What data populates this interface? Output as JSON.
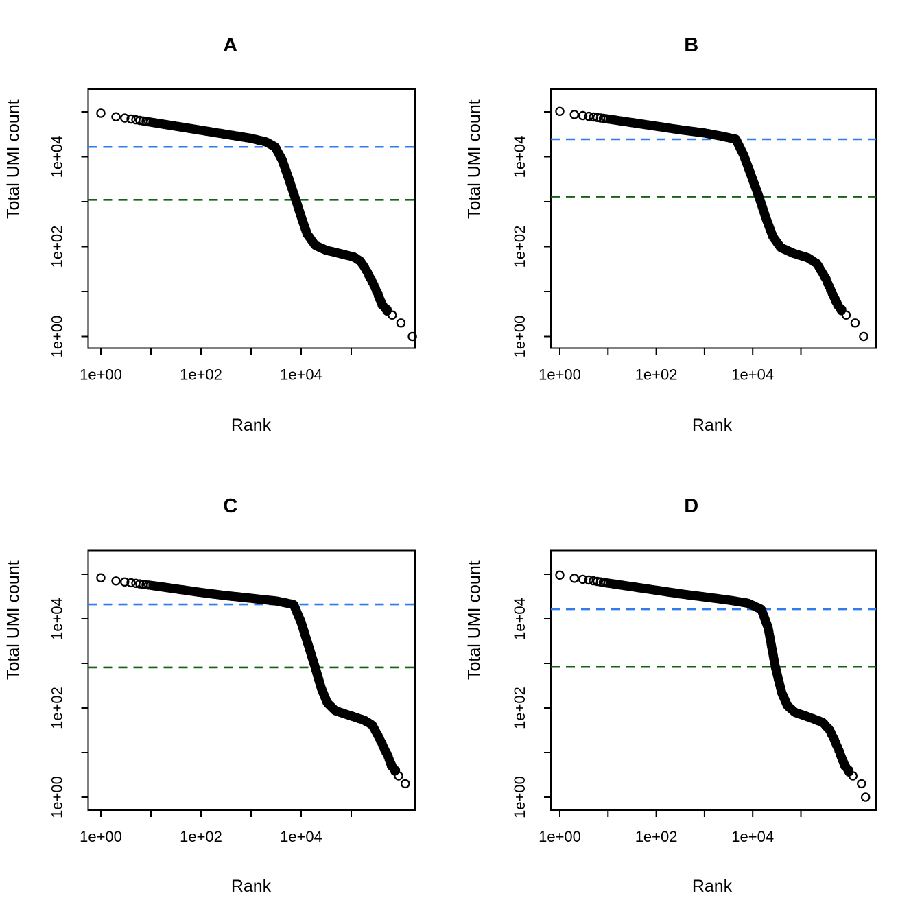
{
  "figure": {
    "background": "#ffffff",
    "description": "Four barcode-rank knee plots (log-log scatter of Total UMI count vs Rank) arranged in a 2x2 grid, each with a dashed blue knee line and dashed dark-green inflection line."
  },
  "colors": {
    "point_stroke": "#000000",
    "axis": "#000000",
    "knee_line_blue": "#2f7ded",
    "inflection_line_green": "#176117"
  },
  "chart_data": [
    {
      "type": "scatter",
      "title": "A",
      "xlabel": "Rank",
      "ylabel": "Total UMI count",
      "xscale": "log",
      "yscale": "log",
      "x_ticks": [
        {
          "log10": 0,
          "label": "1e+00"
        },
        {
          "log10": 1,
          "label": ""
        },
        {
          "log10": 2,
          "label": "1e+02"
        },
        {
          "log10": 3,
          "label": ""
        },
        {
          "log10": 4,
          "label": "1e+04"
        },
        {
          "log10": 5,
          "label": ""
        }
      ],
      "y_ticks": [
        {
          "log10": 0,
          "label": "1e+00"
        },
        {
          "log10": 1,
          "label": ""
        },
        {
          "log10": 2,
          "label": "1e+02"
        },
        {
          "log10": 3,
          "label": ""
        },
        {
          "log10": 4,
          "label": "1e+04"
        },
        {
          "log10": 5,
          "label": ""
        }
      ],
      "hlines": [
        {
          "name": "knee",
          "value": 16500,
          "color": "#2f7ded",
          "style": "dashed"
        },
        {
          "name": "inflection",
          "value": 1100,
          "color": "#176117",
          "style": "dashed"
        }
      ],
      "curve_log10": [
        [
          0,
          4.97
        ],
        [
          0.3,
          4.89
        ],
        [
          0.6,
          4.84
        ],
        [
          1,
          4.77
        ],
        [
          1.5,
          4.68
        ],
        [
          2,
          4.59
        ],
        [
          2.5,
          4.5
        ],
        [
          3,
          4.41
        ],
        [
          3.3,
          4.33
        ],
        [
          3.48,
          4.22
        ],
        [
          3.62,
          3.93
        ],
        [
          3.75,
          3.52
        ],
        [
          3.89,
          3.05
        ],
        [
          4.02,
          2.6
        ],
        [
          4.12,
          2.28
        ],
        [
          4.28,
          2.03
        ],
        [
          4.5,
          1.92
        ],
        [
          4.8,
          1.84
        ],
        [
          5.05,
          1.77
        ],
        [
          5.18,
          1.68
        ],
        [
          5.32,
          1.44
        ],
        [
          5.48,
          1.08
        ],
        [
          5.62,
          0.72
        ],
        [
          5.78,
          0.45
        ],
        [
          5.92,
          0.26
        ],
        [
          6.07,
          0.1
        ],
        [
          6.22,
          0
        ]
      ]
    },
    {
      "type": "scatter",
      "title": "B",
      "xlabel": "Rank",
      "ylabel": "Total UMI count",
      "xscale": "log",
      "yscale": "log",
      "x_ticks": [
        {
          "log10": 0,
          "label": "1e+00"
        },
        {
          "log10": 1,
          "label": ""
        },
        {
          "log10": 2,
          "label": "1e+02"
        },
        {
          "log10": 3,
          "label": ""
        },
        {
          "log10": 4,
          "label": "1e+04"
        },
        {
          "log10": 5,
          "label": ""
        }
      ],
      "y_ticks": [
        {
          "log10": 0,
          "label": "1e+00"
        },
        {
          "log10": 1,
          "label": ""
        },
        {
          "log10": 2,
          "label": "1e+02"
        },
        {
          "log10": 3,
          "label": ""
        },
        {
          "log10": 4,
          "label": "1e+04"
        },
        {
          "log10": 5,
          "label": ""
        }
      ],
      "hlines": [
        {
          "name": "knee",
          "value": 24500,
          "color": "#2f7ded",
          "style": "dashed"
        },
        {
          "name": "inflection",
          "value": 1300,
          "color": "#176117",
          "style": "dashed"
        }
      ],
      "curve_log10": [
        [
          0,
          5.01
        ],
        [
          0.3,
          4.94
        ],
        [
          0.6,
          4.9
        ],
        [
          1,
          4.84
        ],
        [
          1.5,
          4.76
        ],
        [
          2,
          4.68
        ],
        [
          2.5,
          4.6
        ],
        [
          3,
          4.53
        ],
        [
          3.35,
          4.46
        ],
        [
          3.65,
          4.39
        ],
        [
          3.82,
          4.02
        ],
        [
          3.97,
          3.58
        ],
        [
          4.13,
          3.11
        ],
        [
          4.28,
          2.62
        ],
        [
          4.42,
          2.22
        ],
        [
          4.58,
          1.98
        ],
        [
          4.85,
          1.85
        ],
        [
          5.15,
          1.75
        ],
        [
          5.33,
          1.62
        ],
        [
          5.5,
          1.32
        ],
        [
          5.66,
          0.95
        ],
        [
          5.82,
          0.6
        ],
        [
          5.97,
          0.35
        ],
        [
          6.12,
          0.18
        ],
        [
          6.3,
          0.05
        ]
      ]
    },
    {
      "type": "scatter",
      "title": "C",
      "xlabel": "Rank",
      "ylabel": "Total UMI count",
      "xscale": "log",
      "yscale": "log",
      "x_ticks": [
        {
          "log10": 0,
          "label": "1e+00"
        },
        {
          "log10": 1,
          "label": ""
        },
        {
          "log10": 2,
          "label": "1e+02"
        },
        {
          "log10": 3,
          "label": ""
        },
        {
          "log10": 4,
          "label": "1e+04"
        },
        {
          "log10": 5,
          "label": ""
        }
      ],
      "y_ticks": [
        {
          "log10": 0,
          "label": "1e+00"
        },
        {
          "log10": 1,
          "label": ""
        },
        {
          "log10": 2,
          "label": "1e+02"
        },
        {
          "log10": 3,
          "label": ""
        },
        {
          "log10": 4,
          "label": "1e+04"
        },
        {
          "log10": 5,
          "label": ""
        }
      ],
      "hlines": [
        {
          "name": "knee",
          "value": 21000,
          "color": "#2f7ded",
          "style": "dashed"
        },
        {
          "name": "inflection",
          "value": 810,
          "color": "#176117",
          "style": "dashed"
        }
      ],
      "curve_log10": [
        [
          0,
          4.92
        ],
        [
          0.3,
          4.85
        ],
        [
          0.6,
          4.81
        ],
        [
          1,
          4.75
        ],
        [
          1.5,
          4.67
        ],
        [
          2,
          4.59
        ],
        [
          2.5,
          4.52
        ],
        [
          3,
          4.46
        ],
        [
          3.5,
          4.4
        ],
        [
          3.85,
          4.32
        ],
        [
          4.0,
          3.92
        ],
        [
          4.14,
          3.42
        ],
        [
          4.28,
          2.91
        ],
        [
          4.4,
          2.45
        ],
        [
          4.52,
          2.12
        ],
        [
          4.68,
          1.94
        ],
        [
          4.95,
          1.84
        ],
        [
          5.25,
          1.73
        ],
        [
          5.42,
          1.62
        ],
        [
          5.55,
          1.35
        ],
        [
          5.7,
          1.0
        ],
        [
          5.85,
          0.62
        ],
        [
          5.95,
          0.4
        ],
        [
          6.08,
          0.22
        ]
      ]
    },
    {
      "type": "scatter",
      "title": "D",
      "xlabel": "Rank",
      "ylabel": "Total UMI count",
      "xscale": "log",
      "yscale": "log",
      "x_ticks": [
        {
          "log10": 0,
          "label": "1e+00"
        },
        {
          "log10": 1,
          "label": ""
        },
        {
          "log10": 2,
          "label": "1e+02"
        },
        {
          "log10": 3,
          "label": ""
        },
        {
          "log10": 4,
          "label": "1e+04"
        },
        {
          "log10": 5,
          "label": ""
        }
      ],
      "y_ticks": [
        {
          "log10": 0,
          "label": "1e+00"
        },
        {
          "log10": 1,
          "label": ""
        },
        {
          "log10": 2,
          "label": "1e+02"
        },
        {
          "log10": 3,
          "label": ""
        },
        {
          "log10": 4,
          "label": "1e+04"
        },
        {
          "log10": 5,
          "label": ""
        }
      ],
      "hlines": [
        {
          "name": "knee",
          "value": 16400,
          "color": "#2f7ded",
          "style": "dashed"
        },
        {
          "name": "inflection",
          "value": 830,
          "color": "#176117",
          "style": "dashed"
        }
      ],
      "curve_log10": [
        [
          0,
          4.98
        ],
        [
          0.3,
          4.91
        ],
        [
          0.6,
          4.87
        ],
        [
          1,
          4.8
        ],
        [
          1.5,
          4.72
        ],
        [
          2,
          4.64
        ],
        [
          2.5,
          4.56
        ],
        [
          3,
          4.49
        ],
        [
          3.5,
          4.42
        ],
        [
          3.9,
          4.35
        ],
        [
          4.18,
          4.21
        ],
        [
          4.32,
          3.8
        ],
        [
          4.47,
          2.92
        ],
        [
          4.6,
          2.35
        ],
        [
          4.72,
          2.05
        ],
        [
          4.88,
          1.9
        ],
        [
          5.15,
          1.8
        ],
        [
          5.45,
          1.68
        ],
        [
          5.6,
          1.5
        ],
        [
          5.75,
          1.15
        ],
        [
          5.9,
          0.75
        ],
        [
          6.05,
          0.45
        ],
        [
          6.18,
          0.25
        ],
        [
          6.34,
          0.1
        ]
      ]
    }
  ]
}
